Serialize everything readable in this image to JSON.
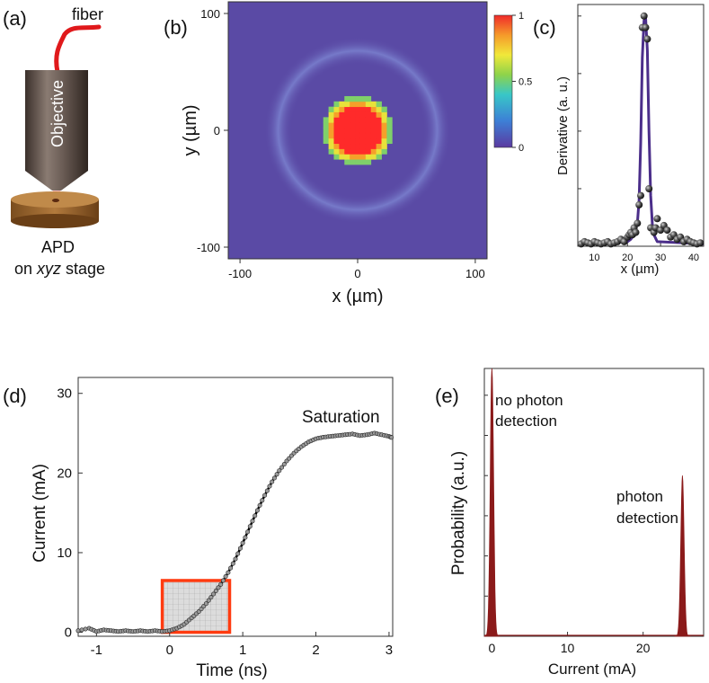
{
  "panel_labels": [
    "(a)",
    "(b)",
    "(c)",
    "(d)",
    "(e)"
  ],
  "panel_a": {
    "fiber_label": "fiber",
    "objective_label": "Objective",
    "stage_label_line1": "APD",
    "stage_label_line2_pre": "on ",
    "stage_label_line2_em": "xyz",
    "stage_label_line2_post": " stage"
  },
  "colors": {
    "heat_background": "#5a4aa5",
    "spot_red": "#ff2a2a",
    "fit_line": "#4b2e8a",
    "trace_black": "#000000",
    "roi_outline": "#ff3b10",
    "histogram_fill": "#8b1a1a",
    "fiber_red": "#e0191b"
  },
  "chart_data": [
    {
      "id": "b",
      "type": "heatmap",
      "title": "",
      "xlabel": "x (µm)",
      "ylabel": "y (µm)",
      "xlim": [
        -110,
        110
      ],
      "ylim": [
        -110,
        110
      ],
      "xticks": [
        -100,
        0,
        100
      ],
      "yticks": [
        -100,
        0,
        100
      ],
      "colorbar": {
        "min": 0,
        "max": 1,
        "ticks": [
          0,
          0.5,
          1
        ],
        "tick_labels": [
          "0",
          "0.5",
          "1"
        ]
      },
      "features": {
        "center_spot": {
          "cx": 0,
          "cy": 0,
          "radius": 27,
          "value": 1.0
        },
        "halo_ring": {
          "cx": 0,
          "cy": 0,
          "radius": 70,
          "value": 0.12
        },
        "background_value": 0.05
      }
    },
    {
      "id": "c",
      "type": "scatter",
      "title": "",
      "xlabel": "x (µm)",
      "ylabel": "Derivative (a. u.)",
      "xlim": [
        5,
        43
      ],
      "ylim": [
        0,
        1.05
      ],
      "xticks": [
        10,
        20,
        30,
        40
      ],
      "points": {
        "x": [
          6,
          7,
          8,
          9,
          10,
          11,
          12,
          13,
          14,
          15,
          16,
          17,
          18,
          19,
          20,
          20.5,
          21,
          21.5,
          22,
          22.5,
          23,
          23.5,
          24,
          24.5,
          25,
          25.5,
          26,
          26.5,
          27,
          28,
          28.5,
          29,
          30,
          31,
          32,
          33,
          34,
          35,
          36,
          37,
          38,
          39,
          40,
          41,
          42
        ],
        "y": [
          0.01,
          0.02,
          0.015,
          0.01,
          0.02,
          0.015,
          0.01,
          0.015,
          0.02,
          0.01,
          0.015,
          0.02,
          0.03,
          0.02,
          0.04,
          0.05,
          0.06,
          0.05,
          0.08,
          0.06,
          0.1,
          0.18,
          0.22,
          0.95,
          1.0,
          0.95,
          0.9,
          0.25,
          0.08,
          0.06,
          0.08,
          0.12,
          0.07,
          0.09,
          0.07,
          0.04,
          0.05,
          0.03,
          0.04,
          0.02,
          0.03,
          0.02,
          0.015,
          0.01,
          0.015
        ]
      },
      "fit": {
        "x": [
          5,
          20,
          21,
          22,
          23,
          23.5,
          24,
          24.5,
          25,
          25.5,
          26,
          26.5,
          27,
          27.5,
          28,
          29,
          43
        ],
        "y": [
          0.01,
          0.02,
          0.03,
          0.05,
          0.1,
          0.2,
          0.45,
          0.82,
          0.98,
          0.99,
          0.85,
          0.5,
          0.22,
          0.1,
          0.05,
          0.02,
          0.01
        ]
      }
    },
    {
      "id": "d",
      "type": "line",
      "title": "",
      "xlabel": "Time (ns)",
      "ylabel": "Current (mA)",
      "xlim": [
        -1.25,
        3.05
      ],
      "ylim": [
        -0.5,
        32
      ],
      "xticks": [
        -1,
        0,
        1,
        2,
        3
      ],
      "yticks": [
        0,
        10,
        20,
        30
      ],
      "annotation": "Saturation",
      "roi": {
        "x0": -0.1,
        "x1": 0.82,
        "y0": 0,
        "y1": 6.5
      },
      "series": [
        {
          "name": "current",
          "x": [
            -1.25,
            -1.1,
            -1.0,
            -0.9,
            -0.8,
            -0.7,
            -0.6,
            -0.5,
            -0.4,
            -0.3,
            -0.2,
            -0.1,
            0.0,
            0.1,
            0.2,
            0.3,
            0.4,
            0.5,
            0.6,
            0.7,
            0.8,
            0.9,
            1.0,
            1.1,
            1.2,
            1.3,
            1.4,
            1.5,
            1.6,
            1.7,
            1.8,
            1.9,
            2.0,
            2.1,
            2.2,
            2.3,
            2.4,
            2.5,
            2.6,
            2.7,
            2.8,
            2.9,
            3.0,
            3.05
          ],
          "y": [
            0.2,
            0.5,
            0.1,
            0.3,
            0.2,
            0.1,
            0.2,
            0.1,
            0.2,
            0.1,
            0.2,
            0.1,
            0.2,
            0.5,
            1.0,
            1.8,
            2.6,
            3.6,
            4.8,
            6.0,
            7.5,
            9.2,
            11.2,
            13.3,
            15.3,
            17.2,
            18.9,
            20.3,
            21.5,
            22.5,
            23.3,
            23.9,
            24.3,
            24.5,
            24.6,
            24.7,
            24.8,
            24.9,
            24.7,
            24.8,
            25.0,
            24.8,
            24.6,
            24.4
          ]
        }
      ]
    },
    {
      "id": "e",
      "type": "area",
      "title": "",
      "xlabel": "Current (mA)",
      "ylabel": "Probability (a.u.)",
      "xlim": [
        -1,
        28
      ],
      "ylim": [
        0,
        1.0
      ],
      "xticks": [
        0,
        10,
        20
      ],
      "annotations": [
        {
          "text_line1": "no photon",
          "text_line2": "detection"
        },
        {
          "text_line1": "photon",
          "text_line2": "detection"
        }
      ],
      "series": [
        {
          "name": "no-photon peak",
          "center": 0,
          "width": 0.35,
          "height": 1.0
        },
        {
          "name": "photon peak",
          "center": 25.2,
          "width": 0.35,
          "height": 0.6
        }
      ]
    }
  ]
}
